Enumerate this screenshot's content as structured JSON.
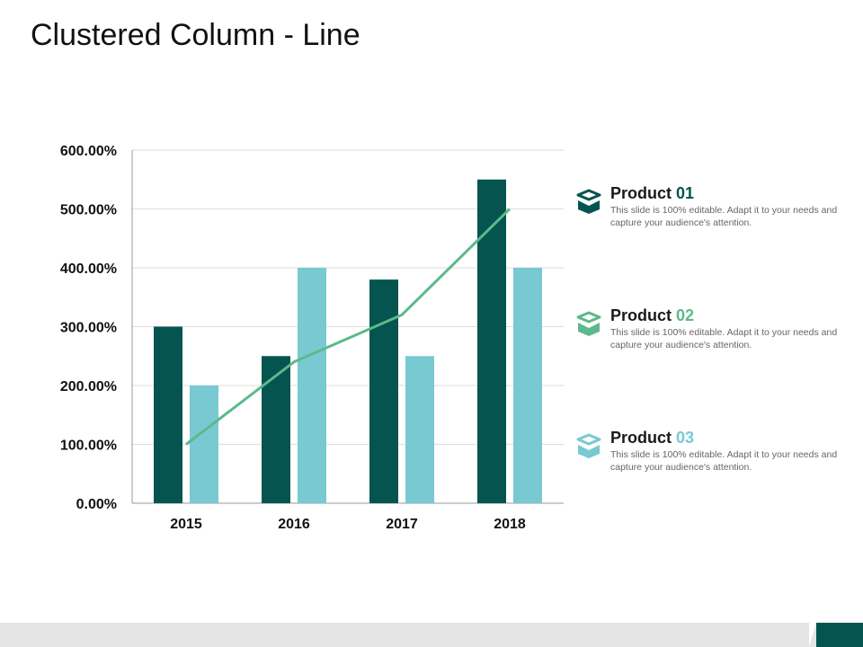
{
  "title": "Clustered Column - Line",
  "colors": {
    "product1": "#05544f",
    "product2": "#5cb98c",
    "product3": "#79c9d2",
    "line": "#5cb98c",
    "grid": "#dddddd",
    "axis": "#999999"
  },
  "chart_data": {
    "type": "bar",
    "categories": [
      "2015",
      "2016",
      "2017",
      "2018"
    ],
    "series": [
      {
        "name": "Product 01",
        "kind": "bar",
        "values": [
          300,
          250,
          380,
          550
        ]
      },
      {
        "name": "Product 03",
        "kind": "bar",
        "values": [
          200,
          400,
          250,
          400
        ]
      },
      {
        "name": "Product 02",
        "kind": "line",
        "values": [
          100,
          240,
          320,
          500
        ]
      }
    ],
    "ylim": [
      0,
      600
    ],
    "yticks": [
      0,
      100,
      200,
      300,
      400,
      500,
      600
    ],
    "ytick_labels": [
      "0.00%",
      "100.00%",
      "200.00%",
      "300.00%",
      "400.00%",
      "500.00%",
      "600.00%"
    ],
    "grid": true
  },
  "legend": [
    {
      "prefix": "Product ",
      "num": "01",
      "icon": "open-box-icon",
      "desc": "This slide is 100% editable. Adapt it to your needs and capture your audience's attention."
    },
    {
      "prefix": "Product ",
      "num": "02",
      "icon": "open-box-icon",
      "desc": "This slide is 100% editable. Adapt it to your needs and capture your audience's attention."
    },
    {
      "prefix": "Product ",
      "num": "03",
      "icon": "open-box-icon",
      "desc": "This slide is 100% editable. Adapt it to your needs and capture your audience's attention."
    }
  ]
}
